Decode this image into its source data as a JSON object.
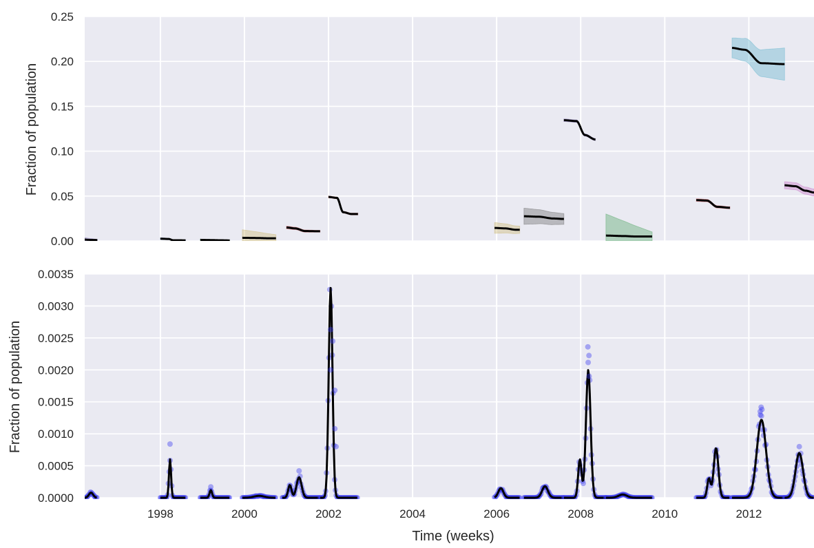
{
  "chart_data": [
    {
      "type": "line",
      "ylabel": "Fraction of population",
      "ylim": [
        0,
        0.25
      ],
      "yticks": [
        "0.00",
        "0.05",
        "0.10",
        "0.15",
        "0.20",
        "0.25"
      ],
      "ytick_values": [
        0,
        0.05,
        0.1,
        0.15,
        0.2,
        0.25
      ],
      "xlim": [
        1996.2,
        2013.55
      ],
      "xticks": [],
      "grid": true,
      "background": "#eaeaf2",
      "segments": [
        {
          "x": [
            1996.2,
            1996.3,
            1996.5
          ],
          "y": [
            0.0015,
            0.0012,
            0.001
          ],
          "band": [
            0.0022,
            0.0008
          ],
          "color": "#8172b2"
        },
        {
          "x": [
            1998.0,
            1998.2,
            1998.3,
            1998.6
          ],
          "y": [
            0.0025,
            0.0022,
            0.0008,
            0.0007
          ],
          "band": [
            0.001,
            0.0005
          ],
          "color": "#4c72b0"
        },
        {
          "x": [
            1998.95,
            1999.2,
            1999.4,
            1999.65
          ],
          "y": [
            0.0012,
            0.001,
            0.0008,
            0.0006
          ],
          "band": [
            0.0008,
            0.0004
          ],
          "color": "#55a868"
        },
        {
          "x": [
            1999.95,
            2000.3,
            2000.55,
            2000.75
          ],
          "y": [
            0.0035,
            0.0033,
            0.003,
            0.003
          ],
          "band": [
            0.009,
            0.004
          ],
          "color": "#ccb974"
        },
        {
          "x": [
            2001.0,
            2001.2,
            2001.45,
            2001.8
          ],
          "y": [
            0.015,
            0.014,
            0.011,
            0.0108
          ],
          "band": [
            0.0015,
            0.001
          ],
          "color": "#c44e52"
        },
        {
          "x": [
            2002.0,
            2002.2,
            2002.35,
            2002.55,
            2002.7
          ],
          "y": [
            0.049,
            0.048,
            0.032,
            0.03,
            0.03
          ],
          "band": [
            0.001,
            0.001
          ],
          "color": "#c44e52"
        },
        {
          "x": [
            2005.95,
            2006.2,
            2006.45,
            2006.55
          ],
          "y": [
            0.0145,
            0.014,
            0.0125,
            0.0125
          ],
          "band": [
            0.006,
            0.004
          ],
          "color": "#ccb974"
        },
        {
          "x": [
            2006.65,
            2007.0,
            2007.35,
            2007.6
          ],
          "y": [
            0.0275,
            0.027,
            0.025,
            0.0245
          ],
          "band": [
            0.009,
            0.006
          ],
          "color": "#6d6d6d"
        },
        {
          "x": [
            2007.6,
            2007.9,
            2008.1,
            2008.35
          ],
          "y": [
            0.1345,
            0.1335,
            0.118,
            0.113
          ],
          "band": [
            0.0015,
            0.0012
          ],
          "color": "#8172b2"
        },
        {
          "x": [
            2008.6,
            2009.0,
            2009.3,
            2009.7
          ],
          "y": [
            0.006,
            0.0055,
            0.005,
            0.005
          ],
          "band": [
            0.024,
            0.005
          ],
          "color": "#55a868"
        },
        {
          "x": [
            2010.75,
            2011.0,
            2011.25,
            2011.55
          ],
          "y": [
            0.0455,
            0.045,
            0.038,
            0.037
          ],
          "band": [
            0.0015,
            0.0012
          ],
          "color": "#c44e52"
        },
        {
          "x": [
            2011.6,
            2011.9,
            2012.3,
            2012.85
          ],
          "y": [
            0.215,
            0.213,
            0.198,
            0.197
          ],
          "band": [
            0.011,
            0.018
          ],
          "color": "#64b5cd"
        },
        {
          "x": [
            2012.85,
            2013.1,
            2013.35,
            2013.55
          ],
          "y": [
            0.062,
            0.061,
            0.056,
            0.054
          ],
          "band": [
            0.004,
            0.004
          ],
          "color": "#c778c8"
        }
      ]
    },
    {
      "type": "line",
      "xlabel": "Time (weeks)",
      "ylabel": "Fraction of population",
      "ylim": [
        0,
        0.0035
      ],
      "yticks": [
        "0.0000",
        "0.0005",
        "0.0010",
        "0.0015",
        "0.0020",
        "0.0025",
        "0.0030",
        "0.0035"
      ],
      "ytick_values": [
        0,
        0.0005,
        0.001,
        0.0015,
        0.002,
        0.0025,
        0.003,
        0.0035
      ],
      "xlim": [
        1996.2,
        2013.55
      ],
      "xticks": [
        "1998",
        "2000",
        "2002",
        "2004",
        "2006",
        "2008",
        "2010",
        "2012"
      ],
      "xtick_values": [
        1998,
        2000,
        2002,
        2004,
        2006,
        2008,
        2010,
        2012
      ],
      "grid": true,
      "background": "#eaeaf2",
      "series_colors": {
        "model": "#000000",
        "observed": "#3a3af0"
      },
      "model_segments": [
        {
          "start": 1996.2,
          "end": 1996.5,
          "peaks": [
            [
              1996.35,
              8e-05,
              0.05
            ]
          ]
        },
        {
          "start": 1998.0,
          "end": 1998.6,
          "peaks": [
            [
              1998.23,
              0.0006,
              0.025
            ]
          ]
        },
        {
          "start": 1998.95,
          "end": 1999.65,
          "peaks": [
            [
              1999.2,
              0.00012,
              0.03
            ]
          ]
        },
        {
          "start": 1999.95,
          "end": 2000.75,
          "peaks": [
            [
              2000.35,
              3e-05,
              0.12
            ]
          ]
        },
        {
          "start": 2000.9,
          "end": 2001.8,
          "peaks": [
            [
              2001.08,
              0.0002,
              0.04
            ],
            [
              2001.3,
              0.00032,
              0.06
            ]
          ]
        },
        {
          "start": 2001.8,
          "end": 2002.7,
          "peaks": [
            [
              2002.05,
              0.00328,
              0.045
            ]
          ]
        },
        {
          "start": 2005.95,
          "end": 2006.55,
          "peaks": [
            [
              2006.1,
              0.00015,
              0.06
            ]
          ]
        },
        {
          "start": 2006.65,
          "end": 2007.6,
          "peaks": [
            [
              2007.15,
              0.00018,
              0.07
            ]
          ]
        },
        {
          "start": 2007.6,
          "end": 2008.6,
          "peaks": [
            [
              2007.98,
              0.0006,
              0.04
            ],
            [
              2008.18,
              0.002,
              0.055
            ]
          ]
        },
        {
          "start": 2008.6,
          "end": 2009.7,
          "peaks": [
            [
              2009.0,
              5e-05,
              0.1
            ]
          ]
        },
        {
          "start": 2010.75,
          "end": 2011.55,
          "peaks": [
            [
              2011.05,
              0.0003,
              0.04
            ],
            [
              2011.22,
              0.00078,
              0.055
            ]
          ]
        },
        {
          "start": 2011.6,
          "end": 2012.85,
          "peaks": [
            [
              2012.3,
              0.00122,
              0.11
            ]
          ]
        },
        {
          "start": 2012.85,
          "end": 2013.55,
          "peaks": [
            [
              2013.2,
              0.0007,
              0.09
            ]
          ]
        }
      ],
      "observed_highlights": [
        {
          "x": 1998.23,
          "y": 0.00084
        },
        {
          "x": 1999.2,
          "y": 0.00017
        },
        {
          "x": 2001.3,
          "y": 0.00042
        },
        {
          "x": 2002.05,
          "y": 0.00263
        },
        {
          "x": 2002.1,
          "y": 0.00245
        },
        {
          "x": 2002.05,
          "y": 0.002
        },
        {
          "x": 2002.15,
          "y": 0.00168
        },
        {
          "x": 2002.15,
          "y": 0.00108
        },
        {
          "x": 2002.18,
          "y": 0.0008
        },
        {
          "x": 2008.17,
          "y": 0.00236
        },
        {
          "x": 2008.2,
          "y": 0.0019
        },
        {
          "x": 2012.27,
          "y": 0.00135
        },
        {
          "x": 2012.3,
          "y": 0.00128
        },
        {
          "x": 2013.2,
          "y": 0.0008
        }
      ]
    }
  ]
}
